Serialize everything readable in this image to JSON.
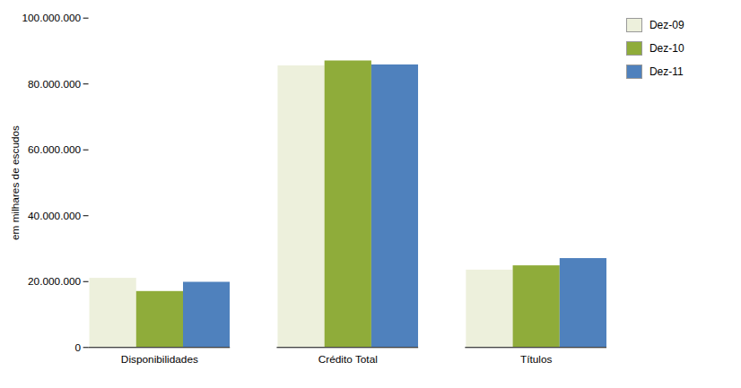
{
  "chart_data": {
    "type": "bar",
    "categories": [
      "Disponibilidades",
      "Crédito Total",
      "Títulos"
    ],
    "series": [
      {
        "name": "Dez-09",
        "color": "#edf0dc",
        "values": [
          21000000,
          85500000,
          23500000
        ]
      },
      {
        "name": "Dez-10",
        "color": "#8fac3a",
        "values": [
          17000000,
          87000000,
          24800000
        ]
      },
      {
        "name": "Dez-11",
        "color": "#4f81bd",
        "values": [
          19800000,
          85800000,
          27000000
        ]
      }
    ],
    "ylabel": "em milhares de escudos",
    "ylim": [
      0,
      100000000
    ],
    "yticks": [
      0,
      {
        "value": 20000000,
        "label": "20.000.000"
      },
      {
        "value": 40000000,
        "label": "40.000.000"
      },
      {
        "value": 60000000,
        "label": "60.000.000"
      },
      {
        "value": 80000000,
        "label": "80.000.000"
      },
      {
        "value": 100000000,
        "label": "100.000.000"
      }
    ],
    "grid": false,
    "legend": "right"
  }
}
